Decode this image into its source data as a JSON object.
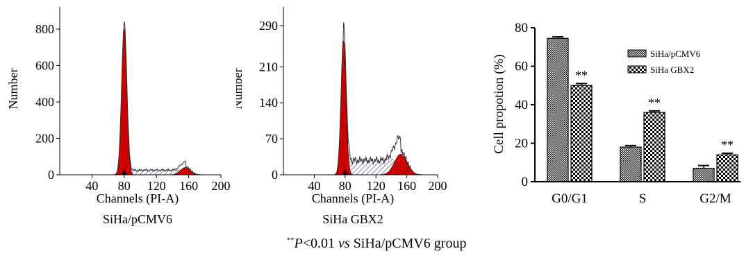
{
  "chart_data": [
    {
      "type": "area",
      "xlabel": "Channels (PI-A)",
      "ylabel": "Number",
      "caption": "SiHa/pCMV6",
      "xticks": [
        "40",
        "80",
        "120",
        "160",
        "200"
      ],
      "yticks": [
        "0",
        "200",
        "400",
        "600",
        "800"
      ],
      "xlim": [
        0,
        200
      ],
      "ylim": [
        0,
        960
      ],
      "marker_x": 80,
      "peak_g1": {
        "center": 80,
        "height": 800,
        "sigma": 3.2
      },
      "peak_g2": {
        "center": 156,
        "height": 40,
        "sigma": 6
      },
      "s_phase_level": 25,
      "s_phase_range": [
        82,
        154
      ]
    },
    {
      "type": "area",
      "xlabel": "Channels (PI-A)",
      "ylabel": "Number",
      "caption": "SiHa GBX2",
      "xticks": [
        "40",
        "80",
        "120",
        "160",
        "200"
      ],
      "yticks": [
        "0",
        "70",
        "140",
        "210",
        "290"
      ],
      "xlim": [
        0,
        200
      ],
      "ylim": [
        0,
        340
      ],
      "marker_x": 80,
      "peak_g1": {
        "center": 78,
        "height": 260,
        "sigma": 3.2
      },
      "peak_g2": {
        "center": 152,
        "height": 40,
        "sigma": 8
      },
      "s_phase_level": 28,
      "s_phase_range": [
        80,
        150
      ]
    },
    {
      "type": "bar",
      "ylabel": "Cell propotion (%)",
      "categories": [
        "G0/G1",
        "S",
        "G2/M"
      ],
      "yticks": [
        "0",
        "20",
        "40",
        "60",
        "80"
      ],
      "ylim": [
        0,
        80
      ],
      "series": [
        {
          "name": "SiHa/pCMV6",
          "values": [
            74.5,
            18,
            7
          ],
          "errors": [
            0.8,
            0.8,
            1.4
          ]
        },
        {
          "name": "SiHa GBX2",
          "values": [
            50,
            36,
            14
          ],
          "errors": [
            1,
            0.8,
            0.8
          ]
        }
      ],
      "annotations": [
        "**",
        "**",
        "**"
      ],
      "legend_position": "top-right"
    }
  ],
  "caption": {
    "stars": "**",
    "p": "P",
    "threshold": "<0.01",
    "vs": "vs",
    "group": "SiHa/pCMV6 group"
  }
}
